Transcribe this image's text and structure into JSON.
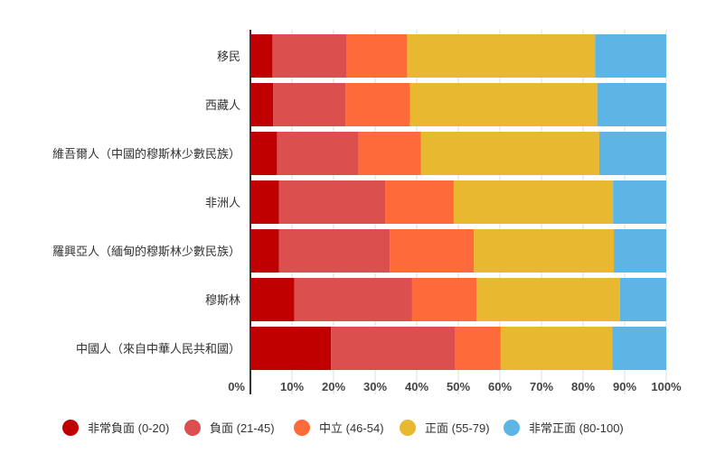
{
  "chart_data": {
    "type": "bar",
    "orientation": "horizontal",
    "stacked": true,
    "categories": [
      "移民",
      "西藏人",
      "維吾爾人（中國的穆斯林少數民族）",
      "非洲人",
      "羅興亞人（緬甸的穆斯林少數民族）",
      "穆斯林",
      "中國人（來自中華人民共和國）"
    ],
    "series": [
      {
        "name": "非常負面 (0-20)",
        "color": "#c00000",
        "values": [
          5.3,
          5.5,
          6.4,
          6.9,
          6.9,
          10.6,
          19.4
        ]
      },
      {
        "name": "負面 (21-45)",
        "color": "#db4f4f",
        "values": [
          17.9,
          17.4,
          19.6,
          25.5,
          26.6,
          28.3,
          29.9
        ]
      },
      {
        "name": "中立 (46-54)",
        "color": "#ff6a3a",
        "values": [
          14.5,
          15.5,
          15.0,
          16.5,
          20.2,
          15.5,
          10.9
        ]
      },
      {
        "name": "正面 (55-79)",
        "color": "#e8b830",
        "values": [
          45.2,
          45.0,
          42.9,
          38.3,
          33.7,
          34.5,
          26.8
        ]
      },
      {
        "name": "非常正面 (80-100)",
        "color": "#5db5e5",
        "values": [
          17.1,
          16.6,
          16.1,
          12.8,
          12.6,
          11.1,
          13.0
        ]
      }
    ],
    "xlim": [
      0,
      100
    ],
    "xticks": [
      "0%",
      "10%",
      "20%",
      "30%",
      "40%",
      "50%",
      "60%",
      "70%",
      "80%",
      "90%",
      "100%"
    ],
    "grid": true,
    "legend_position": "bottom",
    "title": "",
    "xlabel": "",
    "ylabel": ""
  }
}
